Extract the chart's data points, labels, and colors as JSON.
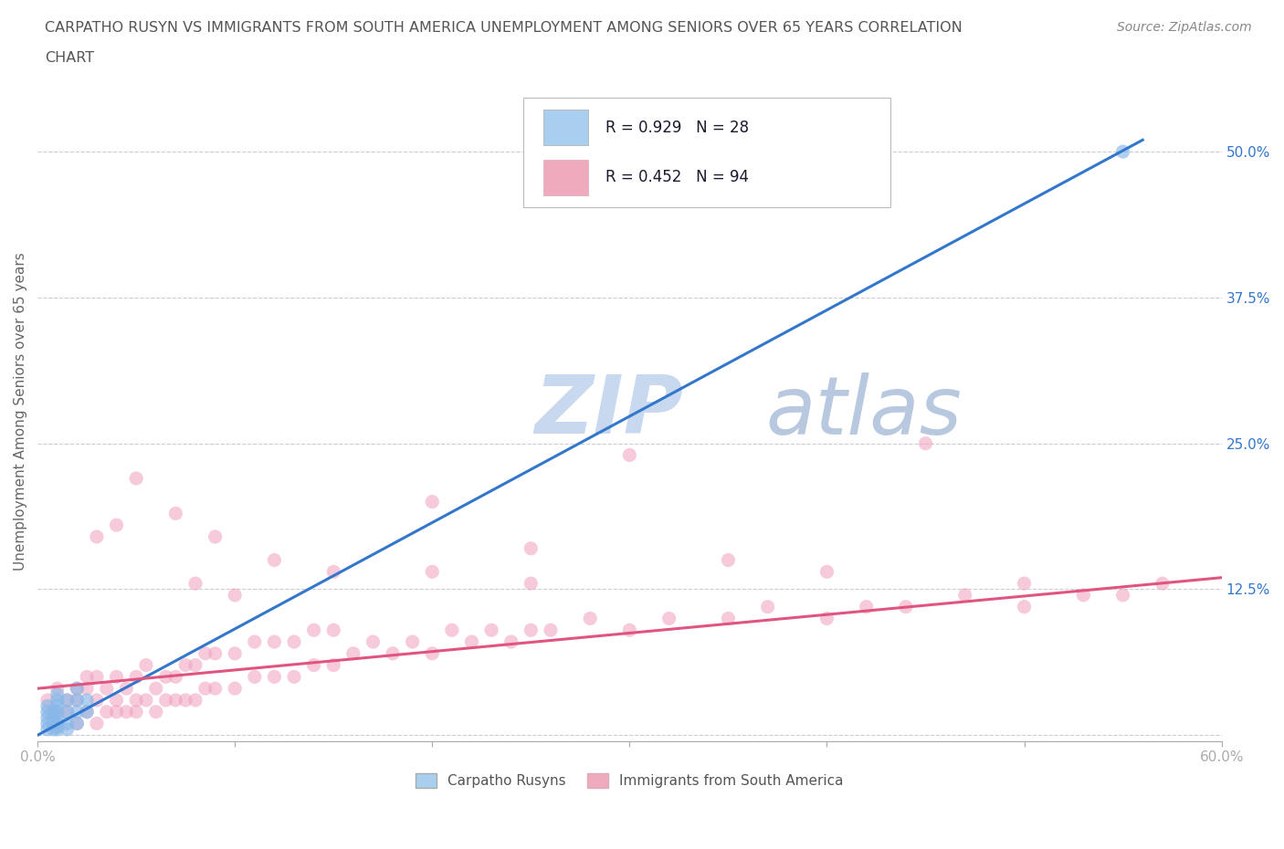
{
  "title_line1": "CARPATHO RUSYN VS IMMIGRANTS FROM SOUTH AMERICA UNEMPLOYMENT AMONG SENIORS OVER 65 YEARS CORRELATION",
  "title_line2": "CHART",
  "source_text": "Source: ZipAtlas.com",
  "watermark_ZIP": "ZIP",
  "watermark_atlas": "atlas",
  "ylabel": "Unemployment Among Seniors over 65 years",
  "xlim": [
    0.0,
    0.6
  ],
  "ylim": [
    -0.005,
    0.56
  ],
  "xticks": [
    0.0,
    0.1,
    0.2,
    0.3,
    0.4,
    0.5,
    0.6
  ],
  "xticklabels": [
    "0.0%",
    "",
    "",
    "",
    "",
    "",
    "60.0%"
  ],
  "ytick_positions": [
    0.0,
    0.125,
    0.25,
    0.375,
    0.5
  ],
  "yticklabels": [
    "",
    "12.5%",
    "25.0%",
    "37.5%",
    "50.0%"
  ],
  "legend_r1": "R = 0.929   N = 28",
  "legend_r2": "R = 0.452   N = 94",
  "legend_color1": "#aacfee",
  "legend_color2": "#f0aabe",
  "series1_color": "#88b8e8",
  "series2_color": "#f0a0bc",
  "trendline1_color": "#3377cc",
  "trendline2_color": "#e05580",
  "background_color": "#ffffff",
  "grid_color": "#cccccc",
  "title_color": "#555555",
  "watermark_color_ZIP": "#c8d8ee",
  "watermark_color_atlas": "#b8c8de",
  "series1_x": [
    0.005,
    0.005,
    0.005,
    0.005,
    0.005,
    0.008,
    0.008,
    0.008,
    0.008,
    0.01,
    0.01,
    0.01,
    0.01,
    0.01,
    0.01,
    0.01,
    0.01,
    0.015,
    0.015,
    0.015,
    0.015,
    0.02,
    0.02,
    0.02,
    0.02,
    0.025,
    0.025,
    0.55
  ],
  "series1_y": [
    0.005,
    0.01,
    0.015,
    0.02,
    0.025,
    0.005,
    0.01,
    0.015,
    0.02,
    0.005,
    0.007,
    0.01,
    0.015,
    0.02,
    0.025,
    0.03,
    0.035,
    0.005,
    0.01,
    0.02,
    0.03,
    0.01,
    0.02,
    0.03,
    0.04,
    0.02,
    0.03,
    0.5
  ],
  "series2_x": [
    0.005,
    0.01,
    0.01,
    0.015,
    0.015,
    0.02,
    0.02,
    0.02,
    0.025,
    0.025,
    0.025,
    0.03,
    0.03,
    0.03,
    0.035,
    0.035,
    0.04,
    0.04,
    0.04,
    0.045,
    0.045,
    0.05,
    0.05,
    0.05,
    0.055,
    0.055,
    0.06,
    0.06,
    0.065,
    0.065,
    0.07,
    0.07,
    0.075,
    0.075,
    0.08,
    0.08,
    0.085,
    0.085,
    0.09,
    0.09,
    0.1,
    0.1,
    0.11,
    0.11,
    0.12,
    0.12,
    0.13,
    0.13,
    0.14,
    0.14,
    0.15,
    0.15,
    0.16,
    0.17,
    0.18,
    0.19,
    0.2,
    0.21,
    0.22,
    0.23,
    0.24,
    0.25,
    0.26,
    0.28,
    0.3,
    0.32,
    0.35,
    0.37,
    0.4,
    0.42,
    0.44,
    0.47,
    0.5,
    0.53,
    0.55,
    0.57,
    0.3,
    0.45,
    0.03,
    0.04,
    0.05,
    0.07,
    0.09,
    0.12,
    0.15,
    0.2,
    0.25,
    0.35,
    0.4,
    0.5,
    0.2,
    0.25,
    0.1,
    0.08
  ],
  "series2_y": [
    0.03,
    0.02,
    0.04,
    0.02,
    0.03,
    0.01,
    0.03,
    0.04,
    0.02,
    0.04,
    0.05,
    0.01,
    0.03,
    0.05,
    0.02,
    0.04,
    0.02,
    0.03,
    0.05,
    0.02,
    0.04,
    0.02,
    0.03,
    0.05,
    0.03,
    0.06,
    0.02,
    0.04,
    0.03,
    0.05,
    0.03,
    0.05,
    0.03,
    0.06,
    0.03,
    0.06,
    0.04,
    0.07,
    0.04,
    0.07,
    0.04,
    0.07,
    0.05,
    0.08,
    0.05,
    0.08,
    0.05,
    0.08,
    0.06,
    0.09,
    0.06,
    0.09,
    0.07,
    0.08,
    0.07,
    0.08,
    0.07,
    0.09,
    0.08,
    0.09,
    0.08,
    0.09,
    0.09,
    0.1,
    0.09,
    0.1,
    0.1,
    0.11,
    0.1,
    0.11,
    0.11,
    0.12,
    0.11,
    0.12,
    0.12,
    0.13,
    0.24,
    0.25,
    0.17,
    0.18,
    0.22,
    0.19,
    0.17,
    0.15,
    0.14,
    0.14,
    0.13,
    0.15,
    0.14,
    0.13,
    0.2,
    0.16,
    0.12,
    0.13
  ],
  "trendline1_x": [
    0.0,
    0.56
  ],
  "trendline1_y": [
    0.0,
    0.51
  ],
  "trendline2_x": [
    0.0,
    0.6
  ],
  "trendline2_y": [
    0.04,
    0.135
  ]
}
